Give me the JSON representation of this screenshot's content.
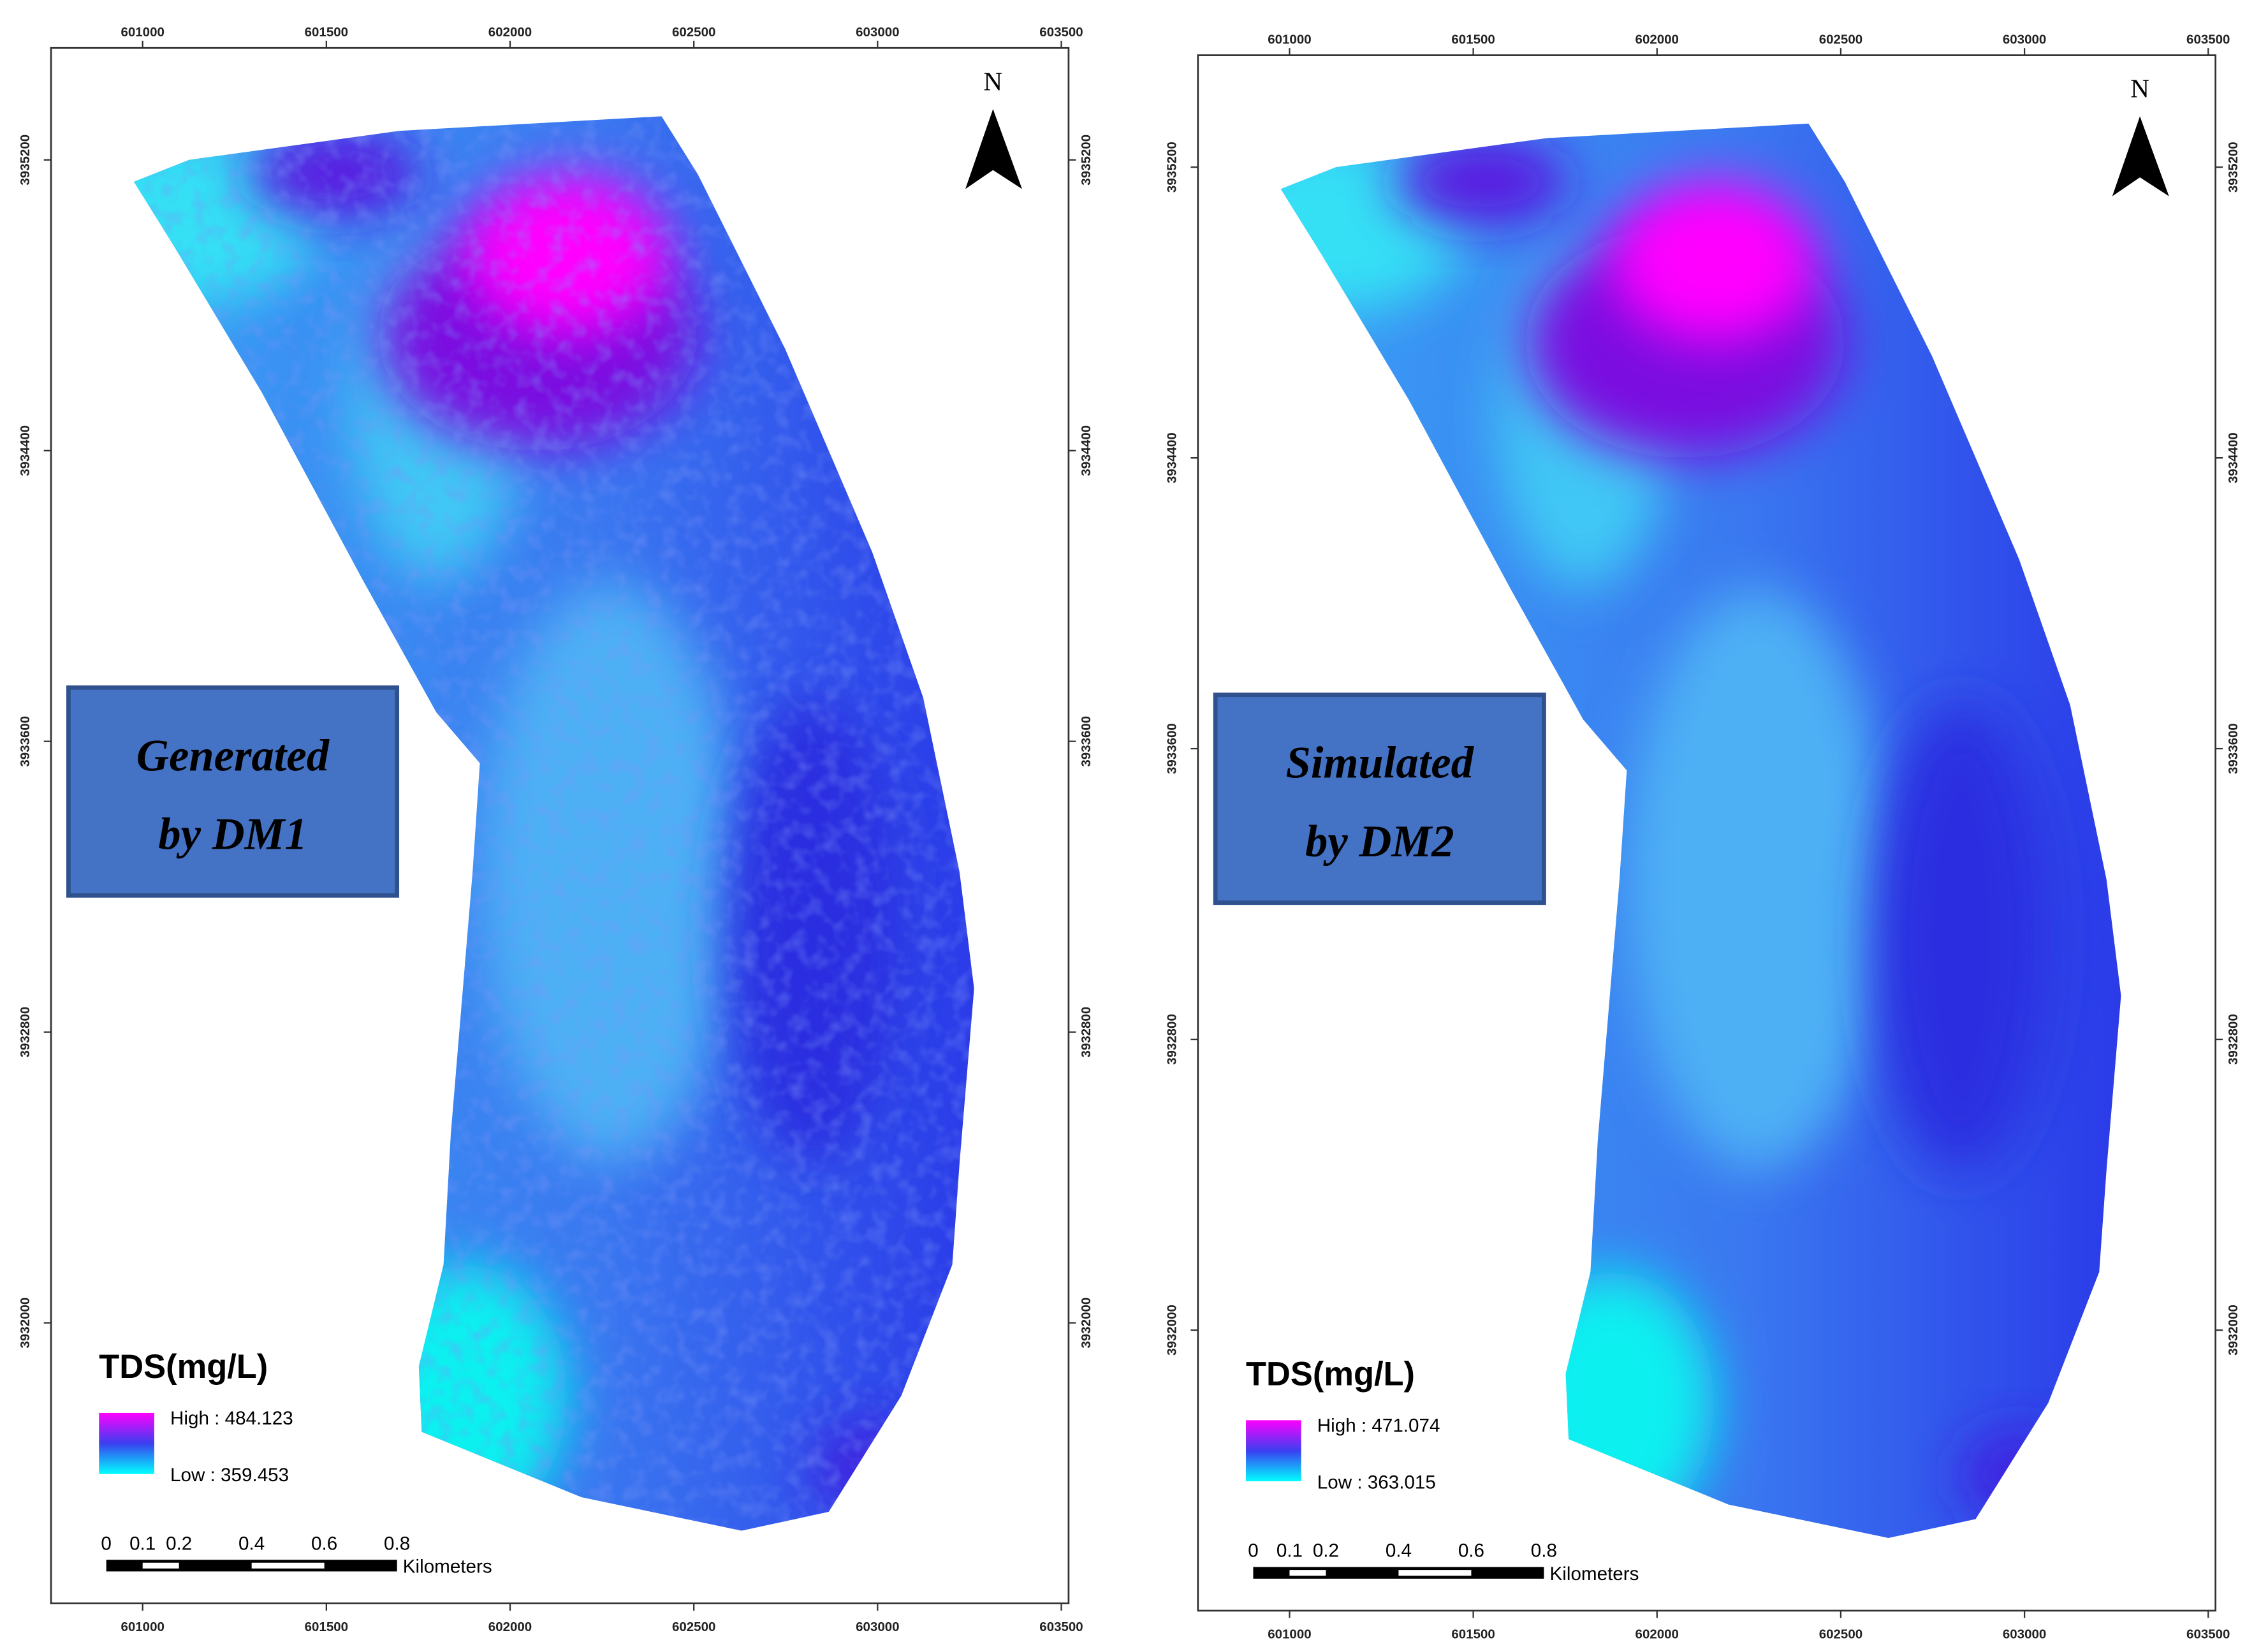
{
  "panels": [
    {
      "x_ticks": [
        601000,
        601500,
        602000,
        602500,
        603000,
        603500
      ],
      "y_ticks": [
        3935200,
        3934400,
        3933600,
        3932800,
        3932000
      ],
      "north": "N",
      "label": [
        "Generated",
        "by DM1"
      ],
      "legend": {
        "title": "TDS(mg/L)",
        "high": "High : 484.123",
        "low": "Low : 359.453"
      },
      "scale": {
        "ticks": [
          0,
          0.1,
          0.2,
          0.4,
          0.6,
          0.8
        ],
        "unit": "Kilometers"
      }
    },
    {
      "x_ticks": [
        601000,
        601500,
        602000,
        602500,
        603000,
        603500
      ],
      "y_ticks": [
        3935200,
        3934400,
        3933600,
        3932800,
        3932000
      ],
      "north": "N",
      "label": [
        "Simulated",
        "by DM2"
      ],
      "legend": {
        "title": "TDS(mg/L)",
        "high": "High : 471.074",
        "low": "Low : 363.015"
      },
      "scale": {
        "ticks": [
          0,
          0.1,
          0.2,
          0.4,
          0.6,
          0.8
        ],
        "unit": "Kilometers"
      }
    }
  ]
}
